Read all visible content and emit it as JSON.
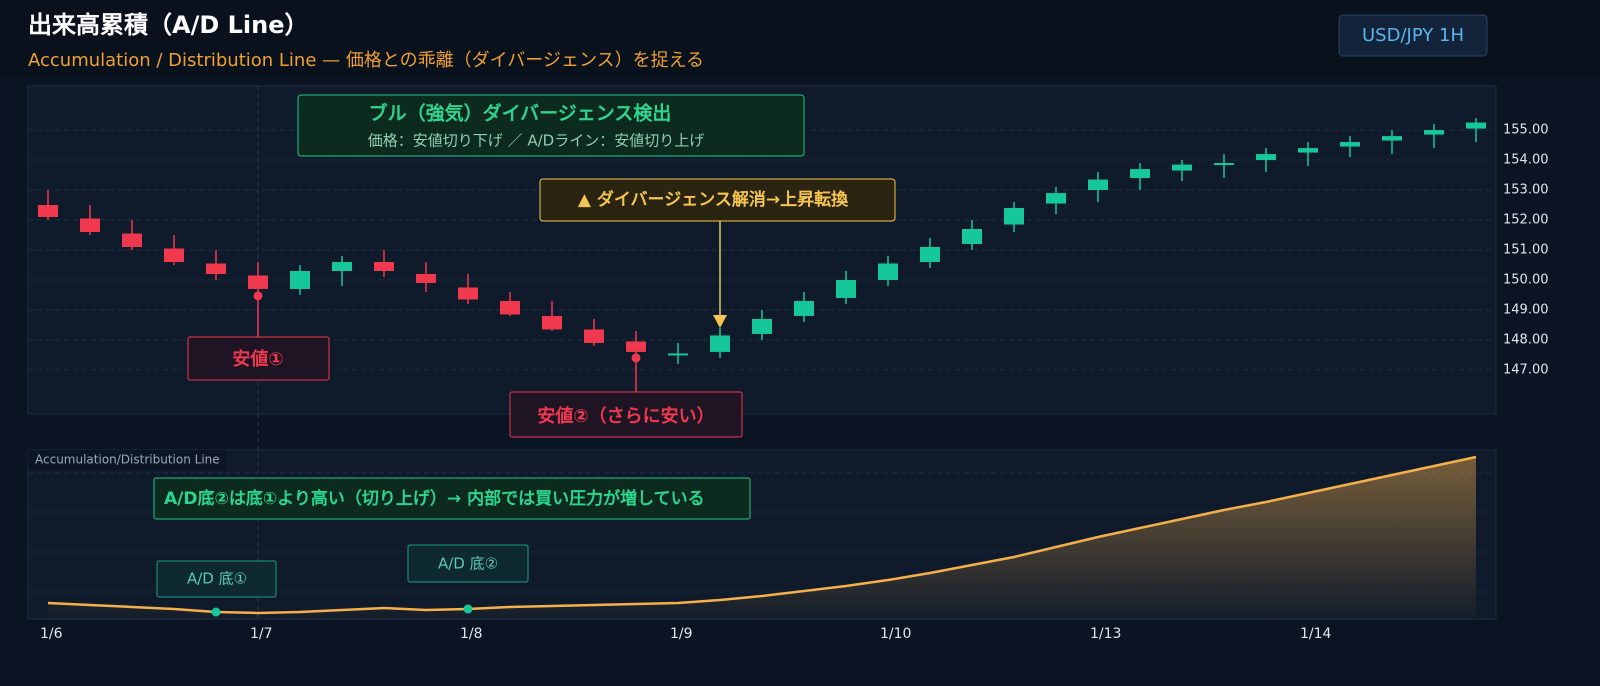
{
  "header": {
    "title": "出来高累積（A/D Line）",
    "subtitle": "Accumulation / Distribution Line — 価格との乖離（ダイバージェンス）を捉える",
    "symbol": "USD/JPY 1H"
  },
  "chart_data": [
    {
      "type": "candlestick",
      "up_color": "#16c79a",
      "down_color": "#f0384f",
      "open": [
        152.5,
        152.05,
        151.55,
        151.05,
        150.55,
        150.15,
        149.7,
        150.3,
        150.6,
        150.2,
        149.75,
        149.3,
        148.8,
        148.35,
        147.95,
        147.5,
        147.6,
        148.2,
        148.8,
        149.4,
        150.0,
        150.6,
        151.2,
        151.85,
        152.55,
        153.0,
        153.4,
        153.65,
        153.85,
        154.0,
        154.25,
        154.45,
        154.65,
        154.85,
        155.05
      ],
      "high": [
        153.0,
        152.5,
        152.0,
        151.5,
        151.0,
        150.6,
        150.5,
        150.8,
        151.0,
        150.6,
        150.2,
        149.6,
        149.3,
        148.7,
        148.3,
        147.9,
        148.4,
        149.0,
        149.6,
        150.3,
        150.8,
        151.4,
        152.0,
        152.6,
        153.1,
        153.6,
        153.9,
        154.0,
        154.2,
        154.4,
        154.6,
        154.8,
        155.0,
        155.2,
        155.4
      ],
      "low": [
        152.0,
        151.5,
        151.0,
        150.5,
        150.0,
        149.47,
        149.5,
        149.8,
        150.1,
        149.6,
        149.2,
        148.8,
        148.3,
        147.8,
        147.4,
        147.2,
        147.4,
        148.0,
        148.6,
        149.2,
        149.8,
        150.4,
        151.0,
        151.6,
        152.2,
        152.6,
        153.0,
        153.3,
        153.4,
        153.6,
        153.8,
        154.1,
        154.2,
        154.4,
        154.6
      ],
      "close": [
        152.1,
        151.6,
        151.1,
        150.6,
        150.2,
        149.7,
        150.3,
        150.6,
        150.3,
        149.9,
        149.35,
        148.85,
        148.35,
        147.9,
        147.6,
        147.55,
        148.15,
        148.7,
        149.3,
        150.0,
        150.55,
        151.1,
        151.7,
        152.4,
        152.9,
        153.35,
        153.7,
        153.85,
        153.9,
        154.2,
        154.4,
        154.6,
        154.8,
        155.0,
        155.25
      ],
      "ylim": [
        145.53,
        156.47
      ],
      "yticks": [
        {
          "value": 147,
          "label": "147.00"
        },
        {
          "value": 148,
          "label": "148.00"
        },
        {
          "value": 149,
          "label": "149.00"
        },
        {
          "value": 150,
          "label": "150.00"
        },
        {
          "value": 151,
          "label": "151.00"
        },
        {
          "value": 152,
          "label": "152.00"
        },
        {
          "value": 153,
          "label": "153.00"
        },
        {
          "value": 154,
          "label": "154.00"
        },
        {
          "value": 155,
          "label": "155.00"
        }
      ],
      "grid": true,
      "annotations": {
        "bull_title": "ブル（強気）ダイバージェンス検出",
        "bull_text": "価格：安値切り下げ ／ A/Dライン：安値切り上げ",
        "resolve": "▲ ダイバージェンス解消→上昇転換",
        "low1": "安値①",
        "low2": "安値②（さらに安い）"
      }
    },
    {
      "type": "line",
      "title": "Accumulation/Distribution Line",
      "color": "#f5b04c",
      "categories": [
        "1/6",
        null,
        null,
        null,
        null,
        "1/7",
        null,
        null,
        null,
        null,
        "1/8",
        null,
        null,
        null,
        null,
        "1/9",
        null,
        null,
        null,
        null,
        "1/10",
        null,
        null,
        null,
        null,
        "1/13",
        null,
        null,
        null,
        null,
        "1/14",
        null,
        null,
        null,
        null
      ],
      "values": [
        16,
        14,
        12,
        10,
        7,
        6,
        7,
        9,
        11,
        9,
        10,
        12,
        13,
        14,
        15,
        16,
        19,
        23,
        28,
        33,
        39,
        46,
        54,
        62,
        72,
        82,
        91,
        100,
        109,
        117,
        126,
        135,
        144,
        153,
        162
      ],
      "ylim": [
        0,
        169
      ],
      "annotations": {
        "note": "A/D底②は底①より高い（切り上げ）→ 内部では買い圧力が増している",
        "bottom1": "A/D 底①",
        "bottom2": "A/D 底②"
      }
    }
  ]
}
